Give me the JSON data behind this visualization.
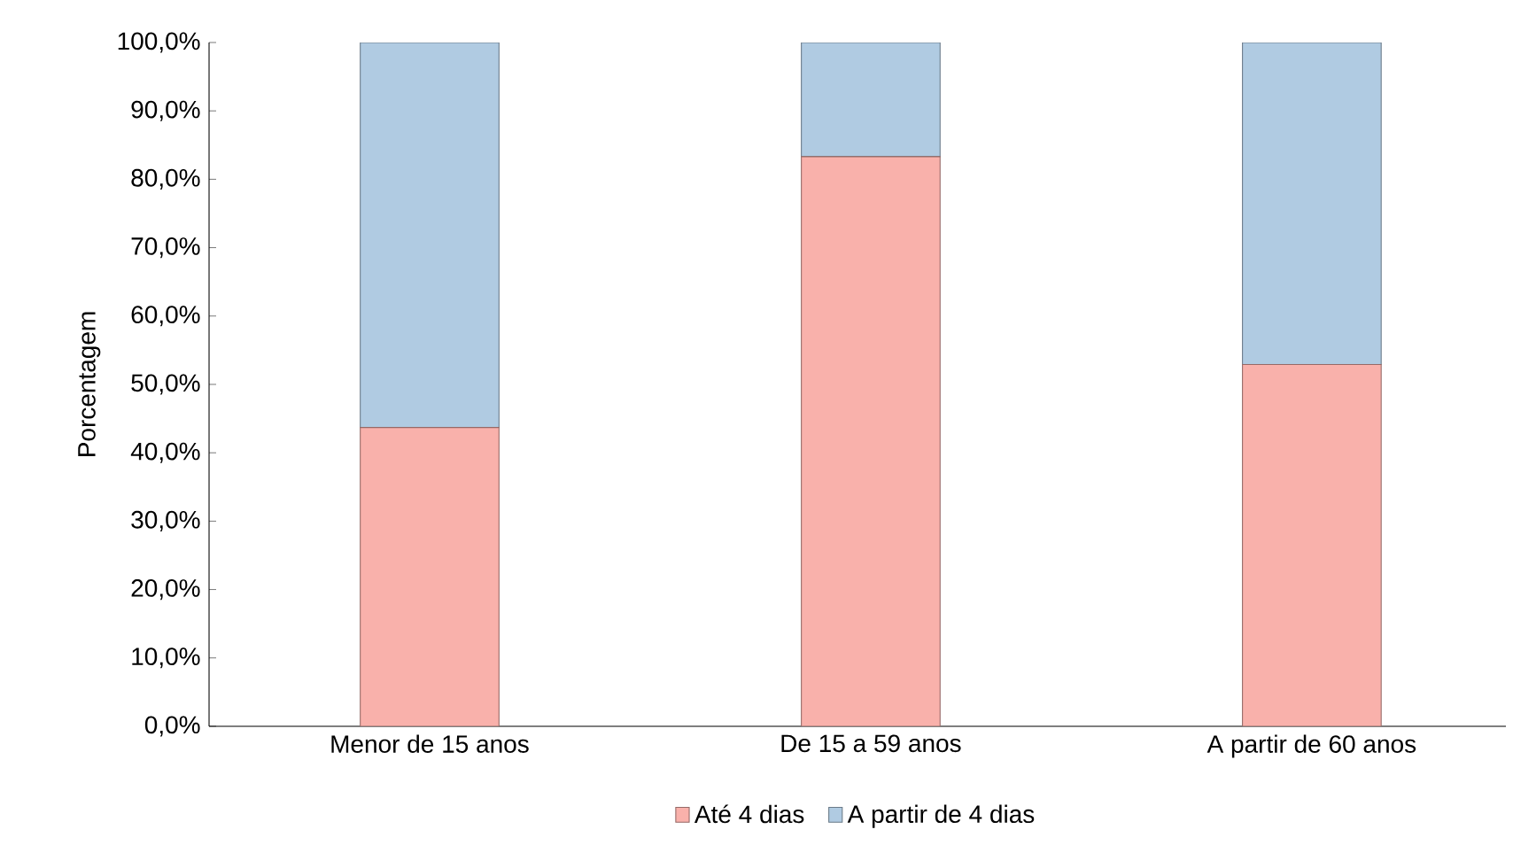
{
  "chart_data": {
    "type": "bar",
    "stacked": true,
    "ylabel": "Porcentagem",
    "categories": [
      "Menor de 15 anos",
      "De 15 a 59 anos",
      "A partir de 60 anos"
    ],
    "series": [
      {
        "name": "Até 4 dias",
        "color": "#f9b1ab",
        "values": [
          43.7,
          83.3,
          52.9
        ]
      },
      {
        "name": "A partir de 4 dias",
        "color": "#b0cbe2",
        "values": [
          56.3,
          16.7,
          47.1
        ]
      }
    ],
    "ylim": [
      0,
      100
    ],
    "yticks": [
      {
        "value": 0,
        "label": "0,0%"
      },
      {
        "value": 10,
        "label": "10,0%"
      },
      {
        "value": 20,
        "label": "20,0%"
      },
      {
        "value": 30,
        "label": "30,0%"
      },
      {
        "value": 40,
        "label": "40,0%"
      },
      {
        "value": 50,
        "label": "50,0%"
      },
      {
        "value": 60,
        "label": "60,0%"
      },
      {
        "value": 70,
        "label": "70,0%"
      },
      {
        "value": 80,
        "label": "80,0%"
      },
      {
        "value": 90,
        "label": "90,0%"
      },
      {
        "value": 100,
        "label": "100,0%"
      }
    ],
    "grid": false,
    "legend": "bottom"
  }
}
